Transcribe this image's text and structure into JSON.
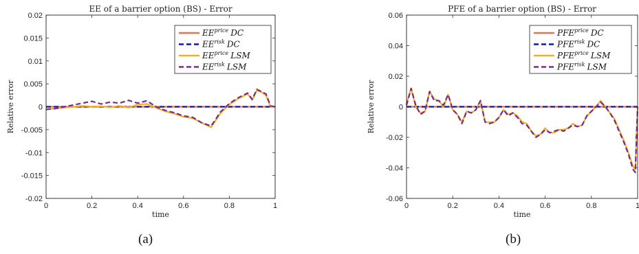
{
  "chart_data": [
    {
      "type": "line",
      "title": "EE of a barrier option (BS) - Error",
      "xlabel": "time",
      "ylabel": "Relative error",
      "xlim": [
        0,
        1
      ],
      "ylim": [
        -0.02,
        0.02
      ],
      "xticks": [
        "0",
        "0.2",
        "0.4",
        "0.6",
        "0.8",
        "1"
      ],
      "yticks": [
        "0.02",
        "0.015",
        "0.01",
        "0.005",
        "0",
        "-0.005",
        "-0.01",
        "-0.015",
        "-0.02"
      ],
      "xtick_values": [
        0,
        0.2,
        0.4,
        0.6,
        0.8,
        1
      ],
      "ytick_values": [
        0.02,
        0.015,
        0.01,
        0.005,
        0,
        -0.005,
        -0.01,
        -0.015,
        -0.02
      ],
      "legend_position": "top-right",
      "grid": false,
      "caption": "(a)",
      "series": [
        {
          "name": "EE^price DC",
          "legend_base": "EE",
          "legend_sup": "price",
          "legend_sub": "DC",
          "color": "#f26d4f",
          "dash": "solid",
          "x": [
            0,
            1
          ],
          "y": [
            0,
            0
          ]
        },
        {
          "name": "EE^risk DC",
          "legend_base": "EE",
          "legend_sup": "risk",
          "legend_sub": "DC",
          "color": "#0b1a9c",
          "dash": "dashed",
          "x": [
            0,
            1
          ],
          "y": [
            0,
            0
          ]
        },
        {
          "name": "EE^price LSM",
          "legend_base": "EE",
          "legend_sup": "price",
          "legend_sub": "LSM",
          "color": "#f0b020",
          "dash": "solid",
          "x": [
            0,
            0.04,
            0.08,
            0.12,
            0.16,
            0.2,
            0.24,
            0.28,
            0.32,
            0.36,
            0.4,
            0.44,
            0.48,
            0.52,
            0.56,
            0.6,
            0.64,
            0.68,
            0.72,
            0.74,
            0.76,
            0.8,
            0.84,
            0.88,
            0.9,
            0.92,
            0.94,
            0.96,
            0.98,
            1
          ],
          "y": [
            -0.0005,
            -0.0004,
            -0.0002,
            0.0,
            0.0002,
            0.0,
            0.0001,
            -0.0001,
            0.0002,
            -0.0002,
            0.0005,
            0.0006,
            -0.0002,
            -0.001,
            -0.0015,
            -0.0022,
            -0.0025,
            -0.0035,
            -0.0045,
            -0.003,
            -0.0015,
            0.0005,
            0.0018,
            0.0028,
            0.0015,
            0.0036,
            0.0032,
            0.0025,
            0.0,
            0.0
          ]
        },
        {
          "name": "EE^risk LSM",
          "legend_base": "EE",
          "legend_sup": "risk",
          "legend_sub": "LSM",
          "color": "#7a2b8f",
          "dash": "dashed",
          "x": [
            0,
            0.04,
            0.08,
            0.12,
            0.16,
            0.2,
            0.24,
            0.28,
            0.32,
            0.36,
            0.4,
            0.44,
            0.48,
            0.52,
            0.56,
            0.6,
            0.64,
            0.68,
            0.72,
            0.74,
            0.76,
            0.8,
            0.84,
            0.88,
            0.9,
            0.92,
            0.94,
            0.96,
            0.98,
            1
          ],
          "y": [
            -0.0006,
            -0.0004,
            0.0,
            0.0004,
            0.0008,
            0.0012,
            0.0006,
            0.001,
            0.0008,
            0.0014,
            0.0008,
            0.0013,
            0.0,
            -0.0008,
            -0.0013,
            -0.002,
            -0.0023,
            -0.0035,
            -0.0042,
            -0.0028,
            -0.0012,
            0.0007,
            0.002,
            0.003,
            0.0016,
            0.0038,
            0.0033,
            0.0028,
            0.0002,
            0.0
          ]
        }
      ]
    },
    {
      "type": "line",
      "title": "PFE of a barrier option (BS) - Error",
      "xlabel": "time",
      "ylabel": "Relative error",
      "xlim": [
        0,
        1
      ],
      "ylim": [
        -0.06,
        0.06
      ],
      "xticks": [
        "0",
        "0.2",
        "0.4",
        "0.6",
        "0.8",
        "1"
      ],
      "yticks": [
        "0.06",
        "0.04",
        "0.02",
        "0",
        "-0.02",
        "-0.04",
        "-0.06"
      ],
      "xtick_values": [
        0,
        0.2,
        0.4,
        0.6,
        0.8,
        1
      ],
      "ytick_values": [
        0.06,
        0.04,
        0.02,
        0,
        -0.02,
        -0.04,
        -0.06
      ],
      "legend_position": "top-right",
      "grid": false,
      "caption": "(b)",
      "series": [
        {
          "name": "PFE^price DC",
          "legend_base": "PFE",
          "legend_sup": "price",
          "legend_sub": "DC",
          "color": "#f26d4f",
          "dash": "solid",
          "x": [
            0,
            1
          ],
          "y": [
            0,
            0
          ]
        },
        {
          "name": "PFE^risk DC",
          "legend_base": "PFE",
          "legend_sup": "risk",
          "legend_sub": "DC",
          "color": "#0b1a9c",
          "dash": "dashed",
          "x": [
            0,
            1
          ],
          "y": [
            0,
            0
          ]
        },
        {
          "name": "PFE^price LSM",
          "legend_base": "PFE",
          "legend_sup": "price",
          "legend_sub": "LSM",
          "color": "#f0b020",
          "dash": "solid",
          "x": [
            0,
            0.02,
            0.04,
            0.06,
            0.08,
            0.1,
            0.12,
            0.14,
            0.16,
            0.18,
            0.2,
            0.22,
            0.24,
            0.26,
            0.28,
            0.3,
            0.32,
            0.34,
            0.36,
            0.38,
            0.4,
            0.42,
            0.44,
            0.46,
            0.48,
            0.5,
            0.52,
            0.54,
            0.56,
            0.58,
            0.6,
            0.62,
            0.64,
            0.66,
            0.68,
            0.7,
            0.72,
            0.74,
            0.76,
            0.78,
            0.8,
            0.82,
            0.84,
            0.86,
            0.88,
            0.9,
            0.92,
            0.94,
            0.96,
            0.98,
            0.99,
            1
          ],
          "y": [
            0.002,
            0.012,
            0.0,
            -0.004,
            -0.003,
            0.01,
            0.005,
            0.004,
            0.0,
            0.008,
            -0.002,
            -0.005,
            -0.01,
            -0.003,
            -0.004,
            -0.002,
            0.004,
            -0.01,
            -0.01,
            -0.01,
            -0.007,
            -0.002,
            -0.005,
            -0.004,
            -0.006,
            -0.01,
            -0.011,
            -0.016,
            -0.019,
            -0.018,
            -0.014,
            -0.017,
            -0.017,
            -0.015,
            -0.015,
            -0.014,
            -0.011,
            -0.013,
            -0.012,
            -0.006,
            -0.003,
            0.0,
            0.004,
            0.0,
            -0.004,
            -0.008,
            -0.015,
            -0.022,
            -0.03,
            -0.039,
            -0.041,
            0.0
          ]
        },
        {
          "name": "PFE^risk LSM",
          "legend_base": "PFE",
          "legend_sup": "risk",
          "legend_sub": "LSM",
          "color": "#7a2b8f",
          "dash": "dashed",
          "x": [
            0,
            0.02,
            0.04,
            0.06,
            0.08,
            0.1,
            0.12,
            0.14,
            0.16,
            0.18,
            0.2,
            0.22,
            0.24,
            0.26,
            0.28,
            0.3,
            0.32,
            0.34,
            0.36,
            0.38,
            0.4,
            0.42,
            0.44,
            0.46,
            0.48,
            0.5,
            0.52,
            0.54,
            0.56,
            0.58,
            0.6,
            0.62,
            0.64,
            0.66,
            0.68,
            0.7,
            0.72,
            0.74,
            0.76,
            0.78,
            0.8,
            0.82,
            0.84,
            0.86,
            0.88,
            0.9,
            0.92,
            0.94,
            0.96,
            0.98,
            0.99,
            1
          ],
          "y": [
            0.001,
            0.012,
            0.001,
            -0.005,
            -0.003,
            0.01,
            0.004,
            0.004,
            0.001,
            0.008,
            -0.002,
            -0.005,
            -0.011,
            -0.003,
            -0.004,
            -0.002,
            0.004,
            -0.01,
            -0.011,
            -0.01,
            -0.007,
            -0.002,
            -0.006,
            -0.004,
            -0.007,
            -0.011,
            -0.012,
            -0.016,
            -0.02,
            -0.018,
            -0.015,
            -0.017,
            -0.016,
            -0.015,
            -0.016,
            -0.014,
            -0.012,
            -0.013,
            -0.012,
            -0.006,
            -0.003,
            0.0,
            0.003,
            0.0,
            -0.004,
            -0.009,
            -0.016,
            -0.023,
            -0.031,
            -0.041,
            -0.043,
            0.0
          ]
        }
      ]
    }
  ]
}
